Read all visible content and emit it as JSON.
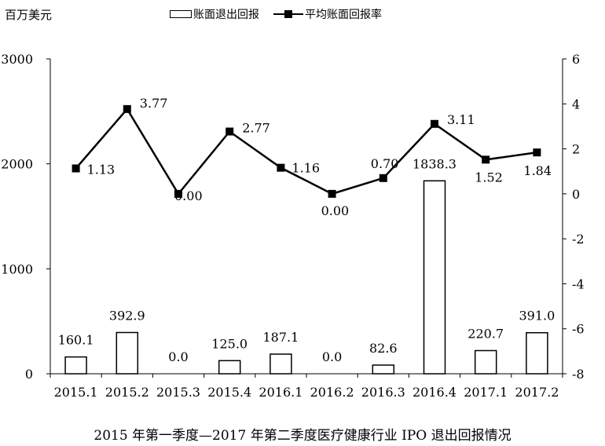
{
  "unit_label": "百万美元",
  "caption": "2015 年第一季度—2017 年第二季度医疗健康行业 IPO 退出回报情况",
  "chart_data": {
    "type": "bar",
    "categories": [
      "2015.1",
      "2015.2",
      "2015.3",
      "2015.4",
      "2016.1",
      "2016.2",
      "2016.3",
      "2016.4",
      "2017.1",
      "2017.2"
    ],
    "series": [
      {
        "name": "账面退出回报",
        "type": "bar",
        "axis": "left",
        "values": [
          160.1,
          392.9,
          0.0,
          125.0,
          187.1,
          0.0,
          82.6,
          1838.3,
          220.7,
          391.0
        ],
        "labels": [
          "160.1",
          "392.9",
          "0.0",
          "125.0",
          "187.1",
          "0.0",
          "82.6",
          "1838.3",
          "220.7",
          "391.0"
        ]
      },
      {
        "name": "平均账面回报率",
        "type": "line",
        "axis": "right",
        "values": [
          1.13,
          3.77,
          0.0,
          2.77,
          1.16,
          0.0,
          0.7,
          3.11,
          1.52,
          1.84
        ],
        "labels": [
          "1.13",
          "3.77",
          "0.00",
          "2.77",
          "1.16",
          "0.00",
          "0.70",
          "3.11",
          "1.52",
          "1.84"
        ]
      }
    ],
    "ylim_left": [
      0,
      3000
    ],
    "yticks_left": [
      "0",
      "1000",
      "2000",
      "3000"
    ],
    "ylim_right": [
      -8,
      6
    ],
    "yticks_right": [
      "-8",
      "-6",
      "-4",
      "-2",
      "0",
      "2",
      "4",
      "6"
    ],
    "legend_position": "top-center",
    "grid": false,
    "colors": {
      "bar_fill": "#ffffff",
      "bar_stroke": "#000000",
      "line": "#000000"
    }
  }
}
